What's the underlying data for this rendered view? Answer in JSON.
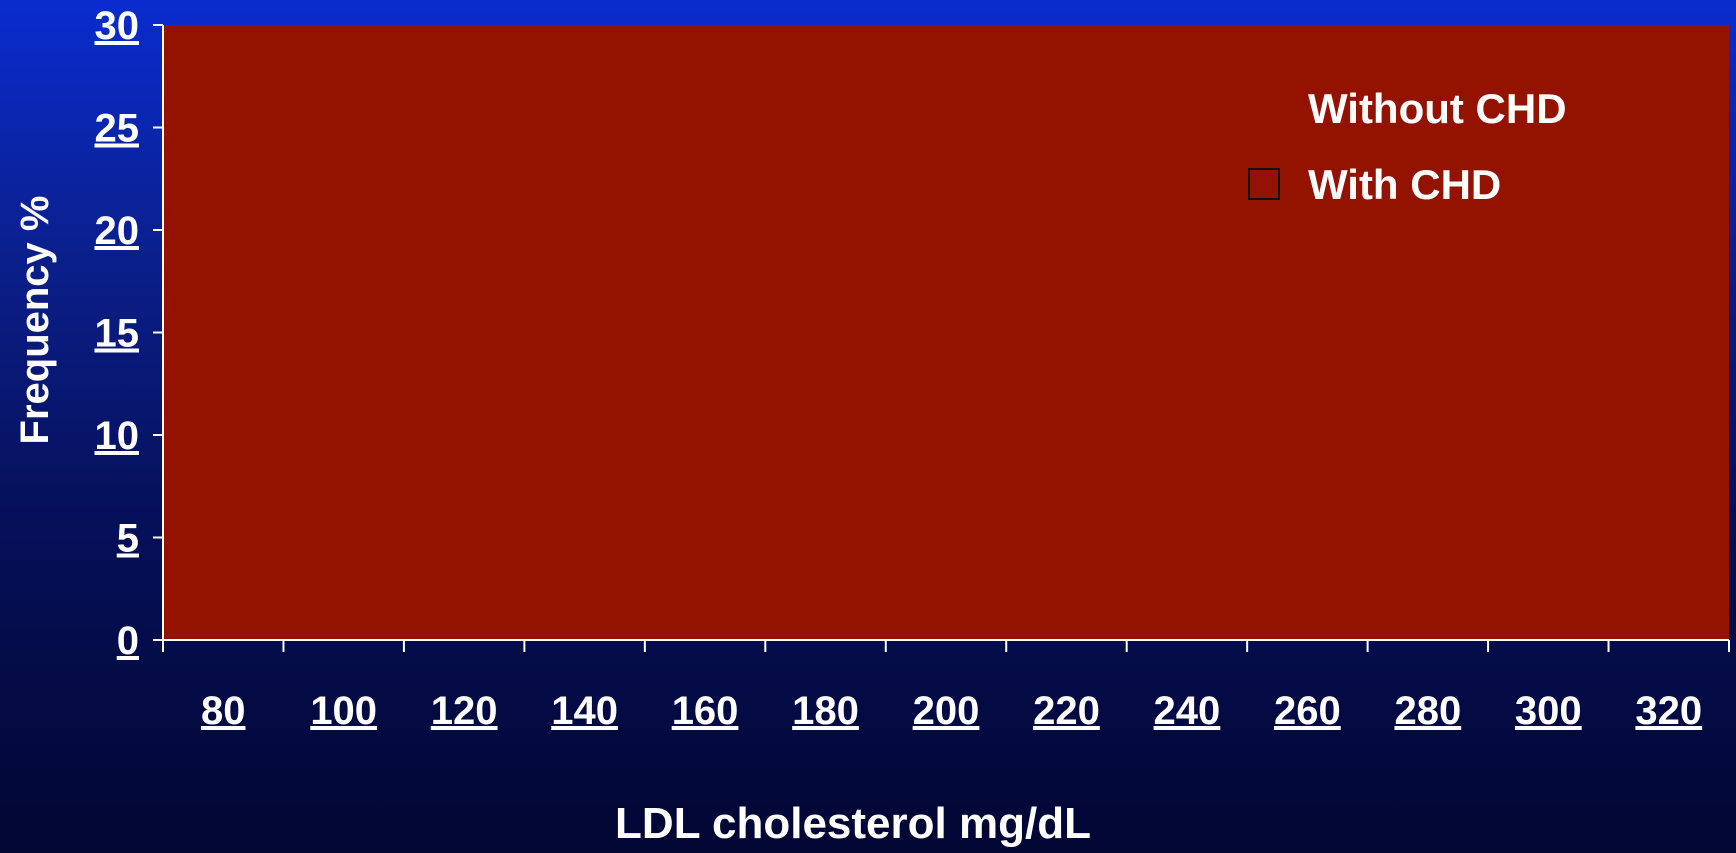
{
  "chart_data": {
    "type": "area",
    "title": "",
    "xlabel": "LDL cholesterol mg/dL",
    "ylabel": "Frequency %",
    "x_ticks": [
      "80",
      "100",
      "120",
      "140",
      "160",
      "180",
      "200",
      "220",
      "240",
      "260",
      "280",
      "300",
      "320"
    ],
    "y_ticks": [
      "0",
      "5",
      "10",
      "15",
      "20",
      "25",
      "30"
    ],
    "xlim": [
      70,
      330
    ],
    "ylim": [
      0,
      30
    ],
    "grid": false,
    "legend_position": "top-right",
    "series": [
      {
        "name": "Without CHD",
        "values": [],
        "color": ""
      },
      {
        "name": "With CHD",
        "values": [],
        "color": ""
      }
    ]
  },
  "colors": {
    "plot_background": "#931300",
    "axis_line": "#ffffff",
    "text": "#ffffff",
    "legend_swatch_border": "#111111"
  }
}
